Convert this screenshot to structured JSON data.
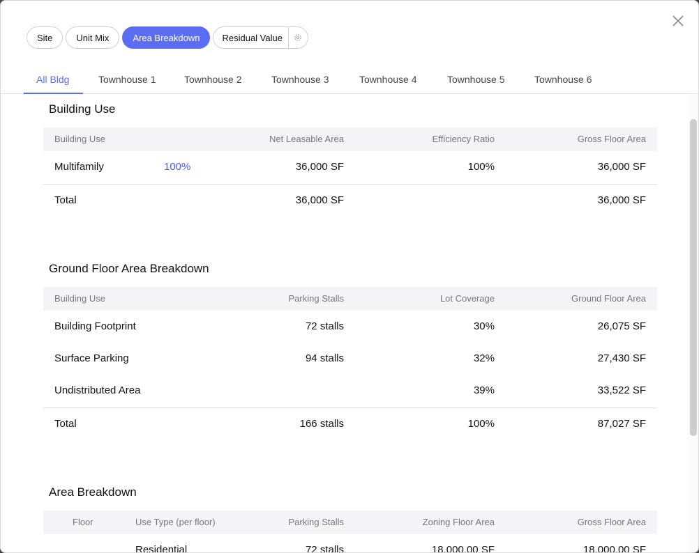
{
  "top_pills": [
    {
      "label": "Site",
      "active": false
    },
    {
      "label": "Unit Mix",
      "active": false
    },
    {
      "label": "Area Breakdown",
      "active": true
    },
    {
      "label": "Residual Value",
      "active": false,
      "has_gear": true
    }
  ],
  "tabs": [
    "All Bldg",
    "Townhouse 1",
    "Townhouse 2",
    "Townhouse 3",
    "Townhouse 4",
    "Townhouse 5",
    "Townhouse 6"
  ],
  "active_tab": "All Bldg",
  "building_use": {
    "title": "Building Use",
    "headers": [
      "Building Use",
      "Net Leasable Area",
      "Efficiency Ratio",
      "Gross Floor Area"
    ],
    "rows": [
      {
        "use": "Multifamily",
        "share": "100%",
        "nla": "36,000 SF",
        "efficiency": "100%",
        "gfa": "36,000 SF"
      }
    ],
    "total": {
      "label": "Total",
      "nla": "36,000 SF",
      "gfa": "36,000 SF"
    }
  },
  "ground_floor": {
    "title": "Ground Floor Area Breakdown",
    "headers": [
      "Building Use",
      "Parking Stalls",
      "Lot Coverage",
      "Ground Floor Area"
    ],
    "rows": [
      {
        "use": "Building Footprint",
        "stalls": "72 stalls",
        "coverage": "30%",
        "area": "26,075 SF"
      },
      {
        "use": "Surface Parking",
        "stalls": "94 stalls",
        "coverage": "32%",
        "area": "27,430 SF"
      },
      {
        "use": "Undistributed Area",
        "stalls": "",
        "coverage": "39%",
        "area": "33,522 SF"
      }
    ],
    "total": {
      "label": "Total",
      "stalls": "166 stalls",
      "coverage": "100%",
      "area": "87,027 SF"
    }
  },
  "area_breakdown": {
    "title": "Area Breakdown",
    "headers": [
      "Floor",
      "Use Type (per floor)",
      "Parking Stalls",
      "Zoning Floor Area",
      "Gross Floor Area"
    ],
    "rows": [
      {
        "floor": "",
        "use": "Residential",
        "stalls": "72 stalls",
        "zfa": "18,000.00 SF",
        "gfa": "18,000.00 SF"
      }
    ]
  },
  "colors": {
    "accent": "#5b6cf5",
    "link": "#4a5af0",
    "header_bg": "#f4f4f6"
  },
  "icons": {
    "close": "close-icon",
    "gear": "gear-icon"
  }
}
